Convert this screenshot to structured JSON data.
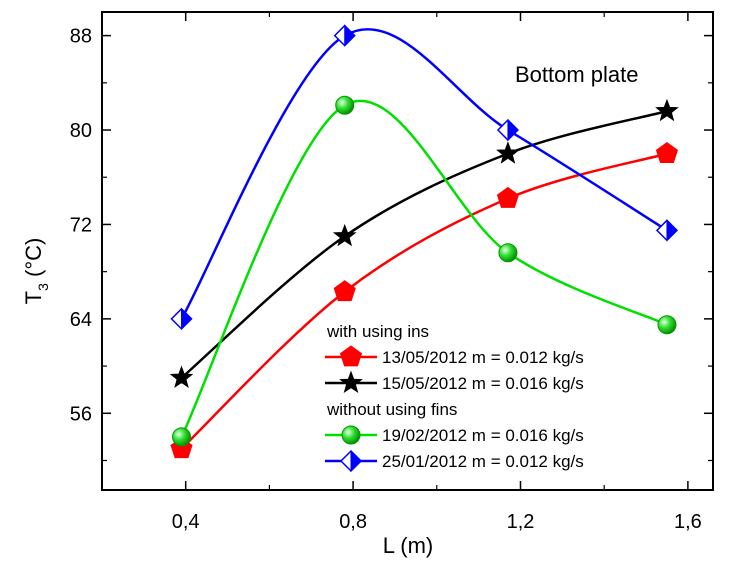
{
  "chart_data": {
    "type": "line",
    "xlabel": "L (m)",
    "ylabel_main": "T",
    "ylabel_sub": "3",
    "ylabel_unit": "(°C)",
    "xlim": [
      0.2,
      1.66
    ],
    "ylim": [
      49.5,
      90
    ],
    "xticks": [
      0.4,
      0.8,
      1.2,
      1.6
    ],
    "xtick_labels": [
      "0,4",
      "0,8",
      "1,2",
      "1,6"
    ],
    "yticks": [
      56,
      64,
      72,
      80,
      88
    ],
    "ytick_labels": [
      "56",
      "64",
      "72",
      "80",
      "88"
    ],
    "annotation": "Bottom plate",
    "legend_groups": [
      {
        "heading": "with using ins",
        "series_indices": [
          0,
          1
        ]
      },
      {
        "heading": "without using fins",
        "series_indices": [
          2,
          3
        ]
      }
    ],
    "series": [
      {
        "name": "13/05/2012 m = 0.012 kg/s",
        "color": "#ff0000",
        "marker": "pentagon",
        "x": [
          0.39,
          0.78,
          1.17,
          1.55
        ],
        "y": [
          53.0,
          66.3,
          74.2,
          78.0
        ]
      },
      {
        "name": "15/05/2012 m = 0.016 kg/s",
        "color": "#000000",
        "marker": "star",
        "x": [
          0.39,
          0.78,
          1.17,
          1.55
        ],
        "y": [
          59.0,
          71.0,
          78.0,
          81.6
        ]
      },
      {
        "name": "19/02/2012 m = 0.016 kg/s",
        "color": "#00e000",
        "marker": "sphere",
        "x": [
          0.39,
          0.78,
          1.17,
          1.55
        ],
        "y": [
          54.0,
          82.1,
          69.6,
          63.5
        ]
      },
      {
        "name": "25/01/2012 m = 0.012 kg/s",
        "color": "#0000ff",
        "marker": "half-diamond",
        "x": [
          0.39,
          0.78,
          1.17,
          1.55
        ],
        "y": [
          64.0,
          88.0,
          80.0,
          71.5
        ]
      }
    ]
  }
}
